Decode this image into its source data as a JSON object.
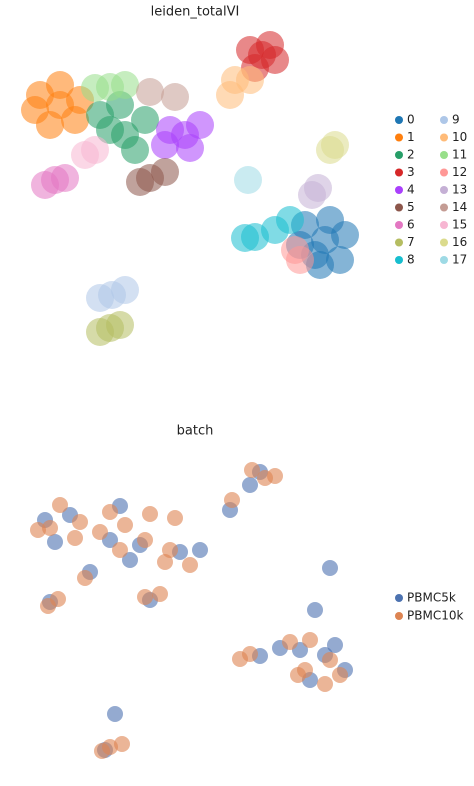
{
  "chart_data": [
    {
      "type": "scatter",
      "title": "leiden_totalVI",
      "legend": "right",
      "legend_columns": 2,
      "series": [
        {
          "name": "0",
          "color": "#1f77b4",
          "x": [
            30.5,
            33,
            34.5,
            34,
            31.5,
            32.5,
            30,
            32
          ],
          "y": [
            13.5,
            14,
            12.5,
            10,
            10.5,
            12,
            11.5,
            9.5
          ]
        },
        {
          "name": "1",
          "color": "#ff7f0e",
          "x": [
            4,
            6,
            8,
            7.5,
            5,
            6,
            3.5
          ],
          "y": [
            26.5,
            27.5,
            26,
            24,
            23.5,
            25.5,
            25
          ]
        },
        {
          "name": "2",
          "color": "#279e68",
          "x": [
            10,
            12,
            12.5,
            13.5,
            14.5,
            11
          ],
          "y": [
            24.5,
            25.5,
            22.5,
            21,
            24,
            23
          ]
        },
        {
          "name": "3",
          "color": "#d62728",
          "x": [
            26.2,
            25,
            27.5,
            25.5,
            27
          ],
          "y": [
            30.5,
            31,
            30,
            29.2,
            31.5
          ]
        },
        {
          "name": "4",
          "color": "#aa40fc",
          "x": [
            18.5,
            17,
            20,
            19,
            16.5
          ],
          "y": [
            22.5,
            23,
            23.5,
            21.2,
            21.5
          ]
        },
        {
          "name": "5",
          "color": "#8c564b",
          "x": [
            15,
            14,
            16.5
          ],
          "y": [
            18.2,
            17.8,
            18.8
          ]
        },
        {
          "name": "6",
          "color": "#e377c2",
          "x": [
            5.5,
            4.5,
            6.5
          ],
          "y": [
            18,
            17.5,
            18.2
          ]
        },
        {
          "name": "7",
          "color": "#b5bd61",
          "x": [
            11,
            10,
            12
          ],
          "y": [
            3.2,
            2.8,
            3.5
          ]
        },
        {
          "name": "8",
          "color": "#17becf",
          "x": [
            25.5,
            27.5,
            29,
            24.5
          ],
          "y": [
            12.3,
            13,
            14,
            12.2
          ]
        },
        {
          "name": "9",
          "color": "#aec7e8",
          "x": [
            11.2,
            10,
            12.5
          ],
          "y": [
            6.5,
            6.2,
            7
          ]
        },
        {
          "name": "10",
          "color": "#ffbb78",
          "x": [
            23.5,
            23,
            25
          ],
          "y": [
            28,
            26.5,
            28
          ]
        },
        {
          "name": "11",
          "color": "#98df8a",
          "x": [
            11,
            12.5,
            9.5
          ],
          "y": [
            27.3,
            27.5,
            27.2
          ]
        },
        {
          "name": "12",
          "color": "#ff9896",
          "x": [
            30,
            29.5
          ],
          "y": [
            10,
            11
          ]
        },
        {
          "name": "13",
          "color": "#c5b0d5",
          "x": [
            31.8,
            31.2
          ],
          "y": [
            17.2,
            16.5
          ]
        },
        {
          "name": "14",
          "color": "#c49c94",
          "x": [
            15,
            17.5
          ],
          "y": [
            26.8,
            26.3
          ]
        },
        {
          "name": "15",
          "color": "#f7b6d2",
          "x": [
            8.5,
            9.5
          ],
          "y": [
            20.5,
            21
          ]
        },
        {
          "name": "16",
          "color": "#dbdb8d",
          "x": [
            33,
            33.5
          ],
          "y": [
            21,
            21.5
          ]
        },
        {
          "name": "17",
          "color": "#9edae5",
          "x": [
            24.8
          ],
          "y": [
            18
          ]
        }
      ]
    },
    {
      "type": "scatter",
      "title": "batch",
      "legend": "right",
      "legend_columns": 1,
      "series": [
        {
          "name": "PBMC5k",
          "color": "#4c72b0",
          "x": [
            30,
            33.5,
            34.5,
            31,
            32.5,
            4.5,
            7,
            5.5,
            11,
            13,
            14,
            26,
            25,
            18,
            20,
            15,
            5,
            10.5,
            11.5,
            26,
            28,
            23,
            12,
            9,
            31.5,
            33
          ],
          "y": [
            13,
            13.5,
            11,
            10,
            12.5,
            26,
            26.5,
            23.8,
            24,
            22,
            23.5,
            30.8,
            29.5,
            22.8,
            23,
            18,
            17.8,
            3,
            6.6,
            12.4,
            13.2,
            27,
            27.4,
            20.8,
            17,
            21.2
          ]
        },
        {
          "name": "PBMC10k",
          "color": "#dd8452",
          "x": [
            31,
            33,
            34,
            32.5,
            30.5,
            3.8,
            6,
            8,
            7.5,
            5,
            10,
            12.5,
            12,
            14.5,
            26.5,
            27.5,
            25.2,
            17,
            19,
            16.5,
            14.5,
            16,
            5.8,
            4.8,
            11,
            10.2,
            12.2,
            25,
            29,
            24,
            23.2,
            11,
            15,
            17.5,
            8.5,
            29.8
          ],
          "y": [
            14,
            12,
            10.5,
            9.6,
            11,
            25,
            27.5,
            25.8,
            24.2,
            25.2,
            24.8,
            25.5,
            23,
            24,
            30.2,
            30.4,
            31,
            23,
            21.5,
            21.8,
            18.3,
            18.6,
            18.1,
            17.4,
            3.3,
            2.9,
            3.6,
            12.6,
            13.8,
            12.1,
            28,
            26.8,
            26.6,
            26.2,
            20.2,
            10.5
          ]
        }
      ]
    }
  ]
}
